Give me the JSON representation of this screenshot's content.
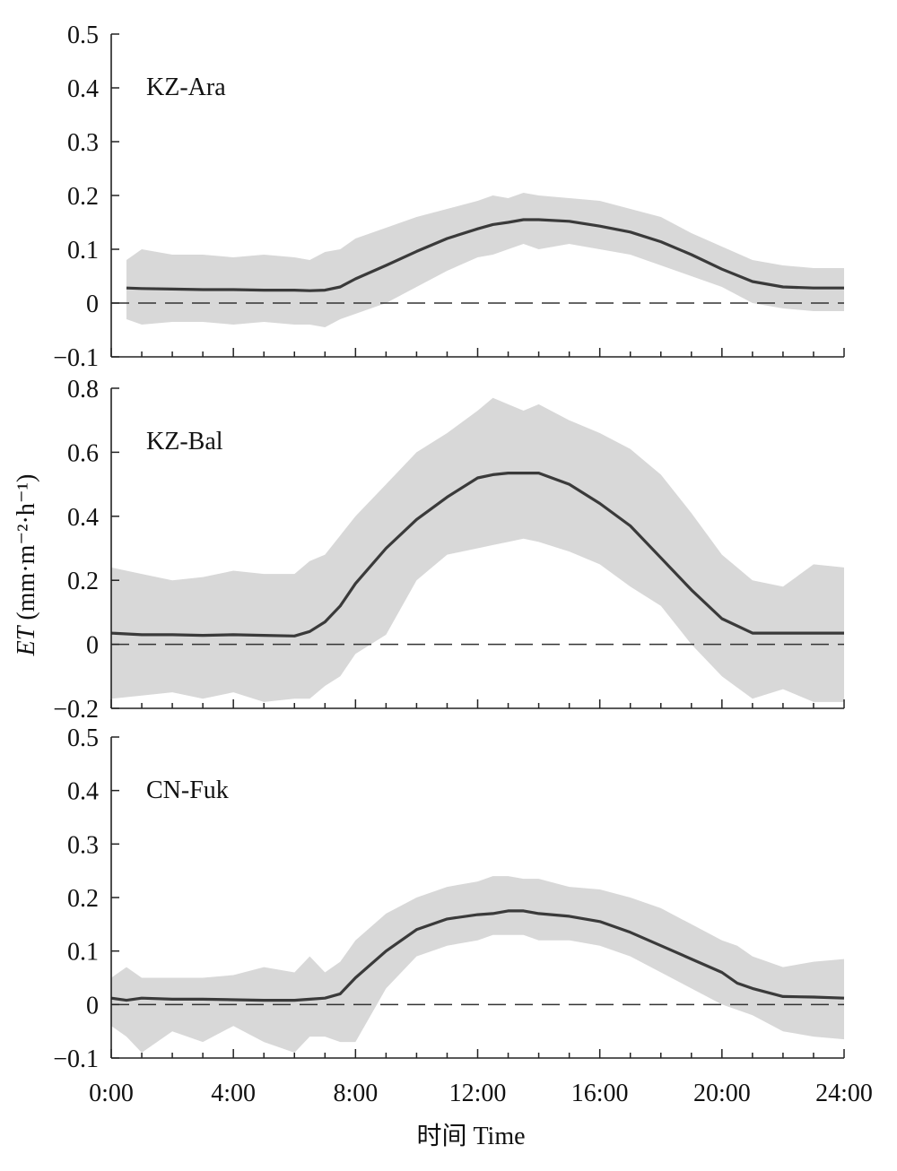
{
  "chart_data": {
    "type": "line",
    "xlabel": "时间 Time",
    "ylabel_main": "ET",
    "ylabel_unit": " (mm·m⁻²·h⁻¹)",
    "x_tick_labels": [
      "0:00",
      "4:00",
      "8:00",
      "12:00",
      "16:00",
      "20:00",
      "24:00"
    ],
    "x_range": [
      0,
      24
    ],
    "panels": [
      {
        "label": "KZ-Ara",
        "ylim": [
          -0.1,
          0.5
        ],
        "y_ticks": [
          -0.1,
          0,
          0.1,
          0.2,
          0.3,
          0.4,
          0.5
        ],
        "y_tick_labels": [
          "−0.1",
          "0",
          "0.1",
          "0.2",
          "0.3",
          "0.4",
          "0.5"
        ],
        "x": [
          0.5,
          1,
          2,
          3,
          4,
          5,
          6,
          6.5,
          7,
          7.5,
          8,
          9,
          10,
          11,
          12,
          12.5,
          13,
          13.5,
          14,
          15,
          16,
          17,
          18,
          19,
          20,
          21,
          22,
          23,
          24
        ],
        "mean": [
          0.028,
          0.027,
          0.026,
          0.025,
          0.025,
          0.024,
          0.024,
          0.023,
          0.024,
          0.03,
          0.045,
          0.07,
          0.096,
          0.12,
          0.138,
          0.146,
          0.15,
          0.155,
          0.155,
          0.152,
          0.143,
          0.132,
          0.114,
          0.09,
          0.063,
          0.04,
          0.03,
          0.028,
          0.028
        ],
        "upper": [
          0.08,
          0.1,
          0.09,
          0.09,
          0.085,
          0.09,
          0.085,
          0.08,
          0.095,
          0.1,
          0.12,
          0.14,
          0.16,
          0.175,
          0.19,
          0.2,
          0.195,
          0.205,
          0.2,
          0.195,
          0.19,
          0.175,
          0.16,
          0.13,
          0.105,
          0.08,
          0.07,
          0.065,
          0.065
        ],
        "lower": [
          -0.03,
          -0.04,
          -0.035,
          -0.035,
          -0.04,
          -0.035,
          -0.04,
          -0.04,
          -0.045,
          -0.03,
          -0.02,
          0.0,
          0.03,
          0.06,
          0.085,
          0.09,
          0.1,
          0.11,
          0.1,
          0.11,
          0.1,
          0.09,
          0.07,
          0.05,
          0.03,
          0.0,
          -0.01,
          -0.015,
          -0.015
        ]
      },
      {
        "label": "KZ-Bal",
        "ylim": [
          -0.2,
          0.8
        ],
        "y_ticks": [
          -0.2,
          0,
          0.2,
          0.4,
          0.6,
          0.8
        ],
        "y_tick_labels": [
          "−0.2",
          "0",
          "0.2",
          "0.4",
          "0.6",
          "0.8"
        ],
        "x": [
          0,
          1,
          2,
          3,
          4,
          5,
          6,
          6.5,
          7,
          7.5,
          8,
          9,
          10,
          11,
          12,
          12.5,
          13,
          13.5,
          14,
          15,
          16,
          17,
          18,
          19,
          20,
          21,
          22,
          23,
          24
        ],
        "mean": [
          0.035,
          0.03,
          0.03,
          0.028,
          0.03,
          0.028,
          0.026,
          0.04,
          0.07,
          0.12,
          0.19,
          0.3,
          0.39,
          0.46,
          0.52,
          0.53,
          0.535,
          0.535,
          0.535,
          0.5,
          0.44,
          0.37,
          0.27,
          0.17,
          0.08,
          0.035,
          0.035,
          0.035,
          0.035
        ],
        "upper": [
          0.24,
          0.22,
          0.2,
          0.21,
          0.23,
          0.22,
          0.22,
          0.26,
          0.28,
          0.34,
          0.4,
          0.5,
          0.6,
          0.66,
          0.73,
          0.77,
          0.75,
          0.73,
          0.75,
          0.7,
          0.66,
          0.61,
          0.53,
          0.41,
          0.28,
          0.2,
          0.18,
          0.25,
          0.24
        ],
        "lower": [
          -0.17,
          -0.16,
          -0.15,
          -0.17,
          -0.15,
          -0.18,
          -0.17,
          -0.17,
          -0.13,
          -0.1,
          -0.03,
          0.03,
          0.2,
          0.28,
          0.3,
          0.31,
          0.32,
          0.33,
          0.32,
          0.29,
          0.25,
          0.18,
          0.12,
          0.0,
          -0.1,
          -0.17,
          -0.14,
          -0.18,
          -0.18
        ]
      },
      {
        "label": "CN-Fuk",
        "ylim": [
          -0.1,
          0.5
        ],
        "y_ticks": [
          -0.1,
          0,
          0.1,
          0.2,
          0.3,
          0.4,
          0.5
        ],
        "y_tick_labels": [
          "−0.1",
          "0",
          "0.1",
          "0.2",
          "0.3",
          "0.4",
          "0.5"
        ],
        "x": [
          0,
          0.5,
          1,
          2,
          3,
          4,
          5,
          6,
          6.5,
          7,
          7.5,
          8,
          9,
          10,
          11,
          12,
          12.5,
          13,
          13.5,
          14,
          15,
          16,
          17,
          18,
          19,
          20,
          20.5,
          21,
          22,
          23,
          24
        ],
        "mean": [
          0.012,
          0.008,
          0.012,
          0.01,
          0.01,
          0.009,
          0.008,
          0.008,
          0.01,
          0.012,
          0.02,
          0.05,
          0.1,
          0.14,
          0.16,
          0.168,
          0.17,
          0.175,
          0.175,
          0.17,
          0.165,
          0.155,
          0.135,
          0.11,
          0.085,
          0.06,
          0.04,
          0.03,
          0.015,
          0.014,
          0.012
        ],
        "upper": [
          0.05,
          0.07,
          0.05,
          0.05,
          0.05,
          0.055,
          0.07,
          0.06,
          0.09,
          0.06,
          0.08,
          0.12,
          0.17,
          0.2,
          0.22,
          0.23,
          0.24,
          0.24,
          0.235,
          0.235,
          0.22,
          0.215,
          0.2,
          0.18,
          0.15,
          0.12,
          0.11,
          0.09,
          0.07,
          0.08,
          0.085
        ],
        "lower": [
          -0.04,
          -0.06,
          -0.09,
          -0.05,
          -0.07,
          -0.04,
          -0.07,
          -0.09,
          -0.06,
          -0.06,
          -0.07,
          -0.07,
          0.03,
          0.09,
          0.11,
          0.12,
          0.13,
          0.13,
          0.13,
          0.12,
          0.12,
          0.11,
          0.09,
          0.06,
          0.03,
          0.0,
          -0.01,
          -0.02,
          -0.05,
          -0.06,
          -0.065
        ]
      }
    ]
  }
}
